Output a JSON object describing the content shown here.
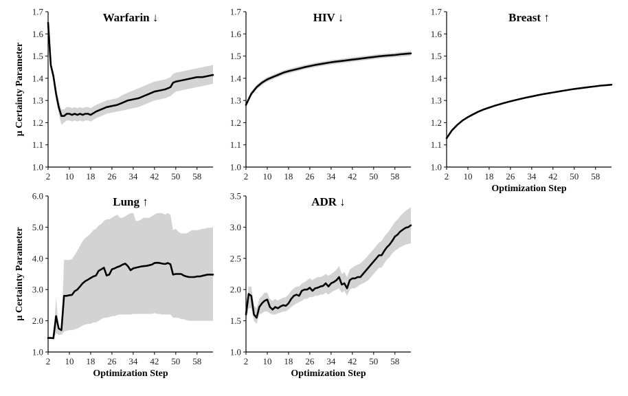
{
  "chart_data": [
    {
      "type": "line",
      "title": "Warfarin ↓",
      "xlabel": "",
      "ylabel": "μ Certainty Parameter",
      "ylim": [
        1.0,
        1.7
      ],
      "xlim": [
        2,
        64
      ],
      "yticks": [
        "1.0",
        "1.1",
        "1.2",
        "1.3",
        "1.4",
        "1.5",
        "1.6",
        "1.7"
      ],
      "xticks": [
        "2",
        "10",
        "18",
        "26",
        "34",
        "42",
        "50",
        "58"
      ],
      "series": [
        {
          "name": "mean",
          "x": [
            2,
            3,
            4,
            5,
            6,
            7,
            8,
            9,
            10,
            11,
            12,
            13,
            14,
            15,
            16,
            17,
            18,
            20,
            22,
            24,
            26,
            28,
            30,
            32,
            34,
            36,
            38,
            40,
            42,
            44,
            46,
            48,
            49,
            50,
            52,
            54,
            56,
            58,
            60,
            62,
            64
          ],
          "values": [
            1.65,
            1.46,
            1.41,
            1.33,
            1.27,
            1.23,
            1.23,
            1.24,
            1.24,
            1.235,
            1.24,
            1.235,
            1.24,
            1.235,
            1.24,
            1.24,
            1.235,
            1.25,
            1.26,
            1.27,
            1.275,
            1.28,
            1.29,
            1.3,
            1.305,
            1.31,
            1.32,
            1.33,
            1.34,
            1.345,
            1.35,
            1.36,
            1.38,
            1.385,
            1.39,
            1.395,
            1.4,
            1.405,
            1.405,
            1.41,
            1.415
          ],
          "lower": [
            1.6,
            1.44,
            1.39,
            1.3,
            1.24,
            1.19,
            1.2,
            1.21,
            1.21,
            1.205,
            1.21,
            1.205,
            1.21,
            1.205,
            1.21,
            1.21,
            1.205,
            1.22,
            1.23,
            1.24,
            1.245,
            1.25,
            1.255,
            1.26,
            1.265,
            1.27,
            1.28,
            1.29,
            1.3,
            1.305,
            1.31,
            1.32,
            1.33,
            1.34,
            1.345,
            1.35,
            1.355,
            1.36,
            1.365,
            1.37,
            1.375
          ],
          "upper": [
            1.68,
            1.48,
            1.43,
            1.36,
            1.3,
            1.26,
            1.26,
            1.27,
            1.27,
            1.265,
            1.27,
            1.265,
            1.27,
            1.265,
            1.27,
            1.27,
            1.265,
            1.28,
            1.29,
            1.3,
            1.305,
            1.31,
            1.325,
            1.335,
            1.345,
            1.355,
            1.365,
            1.375,
            1.385,
            1.39,
            1.395,
            1.405,
            1.42,
            1.425,
            1.43,
            1.435,
            1.44,
            1.445,
            1.45,
            1.455,
            1.46
          ]
        }
      ]
    },
    {
      "type": "line",
      "title": "HIV ↓",
      "xlabel": "",
      "ylabel": "",
      "ylim": [
        1.0,
        1.7
      ],
      "xlim": [
        2,
        64
      ],
      "yticks": [
        "1.0",
        "1.1",
        "1.2",
        "1.3",
        "1.4",
        "1.5",
        "1.6",
        "1.7"
      ],
      "xticks": [
        "2",
        "10",
        "18",
        "26",
        "34",
        "42",
        "50",
        "58"
      ],
      "series": [
        {
          "name": "mean",
          "x": [
            2,
            4,
            6,
            8,
            10,
            12,
            14,
            16,
            18,
            20,
            22,
            24,
            26,
            28,
            30,
            32,
            34,
            36,
            38,
            40,
            42,
            44,
            46,
            48,
            50,
            52,
            54,
            56,
            58,
            60,
            62,
            64
          ],
          "values": [
            1.28,
            1.33,
            1.36,
            1.38,
            1.395,
            1.405,
            1.415,
            1.425,
            1.432,
            1.438,
            1.444,
            1.45,
            1.455,
            1.46,
            1.464,
            1.468,
            1.472,
            1.475,
            1.478,
            1.481,
            1.484,
            1.487,
            1.49,
            1.493,
            1.496,
            1.499,
            1.501,
            1.503,
            1.505,
            1.508,
            1.51,
            1.512
          ],
          "lower": [
            1.27,
            1.32,
            1.35,
            1.37,
            1.385,
            1.395,
            1.405,
            1.415,
            1.422,
            1.428,
            1.434,
            1.44,
            1.445,
            1.45,
            1.454,
            1.458,
            1.462,
            1.465,
            1.468,
            1.471,
            1.474,
            1.477,
            1.48,
            1.483,
            1.486,
            1.489,
            1.491,
            1.493,
            1.495,
            1.497,
            1.499,
            1.501
          ],
          "upper": [
            1.29,
            1.34,
            1.37,
            1.39,
            1.405,
            1.415,
            1.425,
            1.435,
            1.442,
            1.448,
            1.454,
            1.46,
            1.465,
            1.47,
            1.474,
            1.478,
            1.482,
            1.485,
            1.488,
            1.491,
            1.494,
            1.497,
            1.5,
            1.503,
            1.506,
            1.509,
            1.511,
            1.513,
            1.515,
            1.518,
            1.52,
            1.522
          ]
        }
      ]
    },
    {
      "type": "line",
      "title": "Breast ↑",
      "xlabel": "Optimization Step",
      "ylabel": "",
      "ylim": [
        1.0,
        1.7
      ],
      "xlim": [
        2,
        64
      ],
      "yticks": [
        "1.0",
        "1.1",
        "1.2",
        "1.3",
        "1.4",
        "1.5",
        "1.6",
        "1.7"
      ],
      "xticks": [
        "2",
        "10",
        "18",
        "26",
        "34",
        "42",
        "50",
        "58"
      ],
      "series": [
        {
          "name": "mean",
          "x": [
            2,
            4,
            6,
            8,
            10,
            12,
            14,
            16,
            18,
            20,
            22,
            24,
            26,
            28,
            30,
            32,
            34,
            36,
            38,
            40,
            42,
            44,
            46,
            48,
            50,
            52,
            54,
            56,
            58,
            60,
            62,
            64
          ],
          "values": [
            1.13,
            1.165,
            1.19,
            1.21,
            1.225,
            1.238,
            1.25,
            1.26,
            1.268,
            1.276,
            1.283,
            1.29,
            1.296,
            1.302,
            1.308,
            1.313,
            1.318,
            1.323,
            1.328,
            1.332,
            1.336,
            1.34,
            1.344,
            1.348,
            1.352,
            1.355,
            1.358,
            1.361,
            1.364,
            1.367,
            1.369,
            1.371
          ],
          "lower": [
            1.127,
            1.162,
            1.187,
            1.207,
            1.222,
            1.235,
            1.247,
            1.257,
            1.265,
            1.273,
            1.28,
            1.287,
            1.293,
            1.299,
            1.305,
            1.31,
            1.315,
            1.32,
            1.325,
            1.329,
            1.333,
            1.337,
            1.341,
            1.345,
            1.349,
            1.352,
            1.355,
            1.358,
            1.361,
            1.364,
            1.366,
            1.368
          ],
          "upper": [
            1.133,
            1.168,
            1.193,
            1.213,
            1.228,
            1.241,
            1.253,
            1.263,
            1.271,
            1.279,
            1.286,
            1.293,
            1.299,
            1.305,
            1.311,
            1.316,
            1.321,
            1.326,
            1.331,
            1.335,
            1.339,
            1.343,
            1.347,
            1.351,
            1.355,
            1.358,
            1.361,
            1.364,
            1.367,
            1.37,
            1.372,
            1.374
          ]
        }
      ]
    },
    {
      "type": "line",
      "title": "Lung ↑",
      "xlabel": "Optimization Step",
      "ylabel": "μ Certainty Parameter",
      "ylim": [
        1.0,
        6.0
      ],
      "xlim": [
        2,
        64
      ],
      "yticks": [
        "1.0",
        "2.0",
        "3.0",
        "4.0",
        "5.0",
        "6.0"
      ],
      "xticks": [
        "2",
        "10",
        "18",
        "26",
        "34",
        "42",
        "50",
        "58"
      ],
      "series": [
        {
          "name": "mean",
          "x": [
            2,
            3,
            4,
            5,
            6,
            7,
            8,
            9,
            10,
            11,
            12,
            13,
            14,
            15,
            16,
            17,
            18,
            19,
            20,
            21,
            22,
            23,
            24,
            25,
            26,
            27,
            28,
            29,
            30,
            31,
            32,
            33,
            34,
            35,
            36,
            37,
            38,
            39,
            40,
            41,
            42,
            43,
            44,
            45,
            46,
            47,
            48,
            49,
            50,
            51,
            52,
            53,
            54,
            55,
            56,
            57,
            58,
            59,
            60,
            61,
            62,
            63,
            64
          ],
          "values": [
            1.45,
            1.45,
            1.44,
            2.15,
            1.75,
            1.7,
            2.8,
            2.8,
            2.82,
            2.83,
            2.95,
            3.0,
            3.1,
            3.2,
            3.27,
            3.32,
            3.37,
            3.42,
            3.45,
            3.6,
            3.65,
            3.7,
            3.45,
            3.48,
            3.65,
            3.68,
            3.72,
            3.75,
            3.8,
            3.83,
            3.75,
            3.62,
            3.68,
            3.7,
            3.72,
            3.74,
            3.75,
            3.76,
            3.78,
            3.8,
            3.85,
            3.86,
            3.85,
            3.83,
            3.82,
            3.85,
            3.81,
            3.48,
            3.5,
            3.5,
            3.5,
            3.45,
            3.42,
            3.4,
            3.4,
            3.4,
            3.42,
            3.42,
            3.44,
            3.46,
            3.48,
            3.48,
            3.48
          ],
          "lower": [
            1.45,
            1.45,
            1.44,
            1.6,
            1.55,
            1.55,
            1.65,
            1.68,
            1.7,
            1.7,
            1.72,
            1.75,
            1.8,
            1.85,
            1.88,
            1.9,
            1.9,
            1.95,
            1.95,
            2.0,
            2.05,
            2.1,
            2.1,
            2.12,
            2.15,
            2.15,
            2.18,
            2.2,
            2.2,
            2.2,
            2.2,
            2.2,
            2.22,
            2.22,
            2.22,
            2.22,
            2.22,
            2.22,
            2.22,
            2.22,
            2.25,
            2.22,
            2.22,
            2.2,
            2.2,
            2.2,
            2.2,
            2.1,
            2.1,
            2.1,
            2.05,
            2.05,
            2.02,
            2.0,
            2.0,
            2.0,
            2.0,
            2.0,
            2.0,
            2.0,
            2.0,
            2.0,
            2.0
          ],
          "upper": [
            1.45,
            1.45,
            1.44,
            2.75,
            1.75,
            1.7,
            3.95,
            3.95,
            3.95,
            3.98,
            4.1,
            4.25,
            4.4,
            4.55,
            4.65,
            4.72,
            4.8,
            4.9,
            4.95,
            5.05,
            5.1,
            5.2,
            5.25,
            5.25,
            5.3,
            5.35,
            5.4,
            5.3,
            5.3,
            5.35,
            5.4,
            5.45,
            5.45,
            5.2,
            5.2,
            5.25,
            5.3,
            5.3,
            5.3,
            5.35,
            5.4,
            5.45,
            5.45,
            5.45,
            5.4,
            5.45,
            5.4,
            4.9,
            4.95,
            4.85,
            4.8,
            4.8,
            4.8,
            4.85,
            4.9,
            4.9,
            4.9,
            4.92,
            4.95,
            4.95,
            4.98,
            4.98,
            5.0
          ]
        }
      ]
    },
    {
      "type": "line",
      "title": "ADR ↓",
      "xlabel": "Optimization Step",
      "ylabel": "",
      "ylim": [
        1.0,
        3.5
      ],
      "xlim": [
        2,
        64
      ],
      "yticks": [
        "1.0",
        "1.5",
        "2.0",
        "2.5",
        "3.0",
        "3.5"
      ],
      "xticks": [
        "2",
        "10",
        "18",
        "26",
        "34",
        "42",
        "50",
        "58"
      ],
      "series": [
        {
          "name": "mean",
          "x": [
            2,
            3,
            4,
            5,
            6,
            7,
            8,
            9,
            10,
            11,
            12,
            13,
            14,
            15,
            16,
            17,
            18,
            19,
            20,
            21,
            22,
            23,
            24,
            25,
            26,
            27,
            28,
            29,
            30,
            31,
            32,
            33,
            34,
            35,
            36,
            37,
            38,
            39,
            40,
            41,
            42,
            43,
            44,
            45,
            46,
            47,
            48,
            49,
            50,
            51,
            52,
            53,
            54,
            55,
            56,
            57,
            58,
            59,
            60,
            61,
            62,
            63,
            64
          ],
          "values": [
            1.6,
            1.93,
            1.9,
            1.6,
            1.55,
            1.72,
            1.78,
            1.82,
            1.84,
            1.72,
            1.68,
            1.72,
            1.7,
            1.73,
            1.75,
            1.74,
            1.78,
            1.85,
            1.9,
            1.92,
            1.9,
            1.98,
            2.0,
            2.0,
            2.03,
            1.98,
            2.02,
            2.03,
            2.05,
            2.06,
            2.1,
            2.05,
            2.1,
            2.12,
            2.15,
            2.2,
            2.08,
            2.1,
            2.02,
            2.15,
            2.18,
            2.18,
            2.2,
            2.2,
            2.25,
            2.3,
            2.35,
            2.4,
            2.45,
            2.5,
            2.55,
            2.55,
            2.62,
            2.68,
            2.72,
            2.78,
            2.85,
            2.88,
            2.93,
            2.96,
            2.99,
            3.0,
            3.03
          ],
          "lower": [
            1.5,
            1.7,
            1.7,
            1.5,
            1.45,
            1.6,
            1.62,
            1.65,
            1.65,
            1.62,
            1.6,
            1.6,
            1.62,
            1.63,
            1.65,
            1.65,
            1.68,
            1.72,
            1.75,
            1.78,
            1.8,
            1.82,
            1.85,
            1.85,
            1.88,
            1.88,
            1.9,
            1.9,
            1.92,
            1.92,
            1.95,
            1.92,
            1.95,
            1.98,
            2.0,
            2.02,
            1.95,
            1.98,
            1.9,
            2.0,
            2.02,
            2.02,
            2.05,
            2.08,
            2.1,
            2.12,
            2.15,
            2.2,
            2.25,
            2.3,
            2.35,
            2.35,
            2.42,
            2.48,
            2.52,
            2.58,
            2.62,
            2.65,
            2.68,
            2.7,
            2.72,
            2.73,
            2.74
          ],
          "upper": [
            1.75,
            2.05,
            2.05,
            1.75,
            1.7,
            1.85,
            1.9,
            1.95,
            1.95,
            1.85,
            1.82,
            1.85,
            1.82,
            1.85,
            1.87,
            1.88,
            1.92,
            1.98,
            2.02,
            2.05,
            2.05,
            2.1,
            2.12,
            2.15,
            2.18,
            2.15,
            2.18,
            2.2,
            2.2,
            2.22,
            2.25,
            2.22,
            2.25,
            2.28,
            2.32,
            2.38,
            2.25,
            2.28,
            2.2,
            2.32,
            2.35,
            2.38,
            2.4,
            2.42,
            2.46,
            2.5,
            2.55,
            2.6,
            2.65,
            2.7,
            2.75,
            2.78,
            2.85,
            2.9,
            2.95,
            3.02,
            3.08,
            3.12,
            3.18,
            3.22,
            3.26,
            3.29,
            3.32
          ]
        }
      ]
    }
  ]
}
